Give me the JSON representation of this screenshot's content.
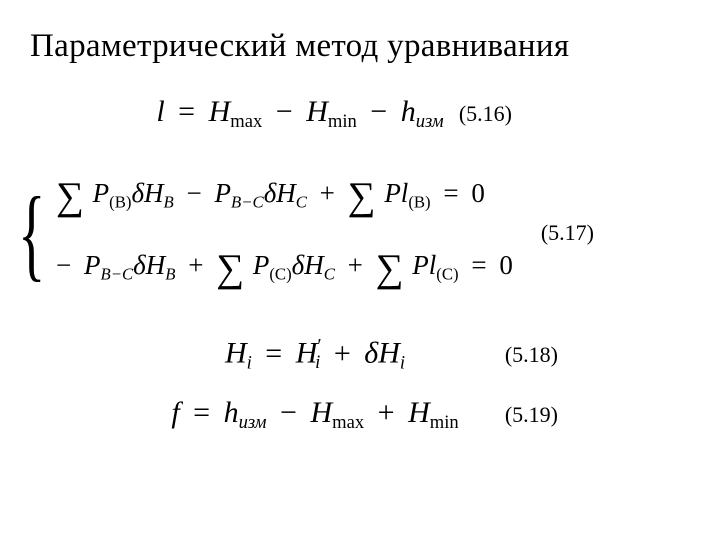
{
  "title": "Параметрический метод уравнивания",
  "eq516": {
    "number": "(5.16)",
    "l": "l",
    "eq": "=",
    "H": "H",
    "max": "max",
    "minus": "−",
    "min": "min",
    "h": "h",
    "izm": "изм"
  },
  "eq517": {
    "number": "(5.17)",
    "row1": {
      "sum": "∑",
      "P": "P",
      "B": "(B)",
      "delta": "δ",
      "H": "H",
      "Bp": "B",
      "minus": "−",
      "PBC": "P",
      "BCsub": "B−C",
      "Cp": "C",
      "plus": "+",
      "Pl": "Pl",
      "eq": "=",
      "zero": "0"
    },
    "row2": {
      "neg": "−",
      "P": "P",
      "BCsub": "B−C",
      "delta": "δ",
      "H": "H",
      "Bp": "B",
      "plus": "+",
      "sum": "∑",
      "Csub": "(C)",
      "Cp": "C",
      "Pl": "Pl",
      "eq": "=",
      "zero": "0"
    }
  },
  "eq518": {
    "number": "(5.18)",
    "H": "H",
    "i": "i",
    "eq": "=",
    "prime": "′",
    "plus": "+",
    "delta": "δ"
  },
  "eq519": {
    "number": "(5.19)",
    "f": "f",
    "eq": "=",
    "h": "h",
    "izm": "изм",
    "minus": "−",
    "H": "H",
    "max": "max",
    "plus": "+",
    "min": "min"
  }
}
